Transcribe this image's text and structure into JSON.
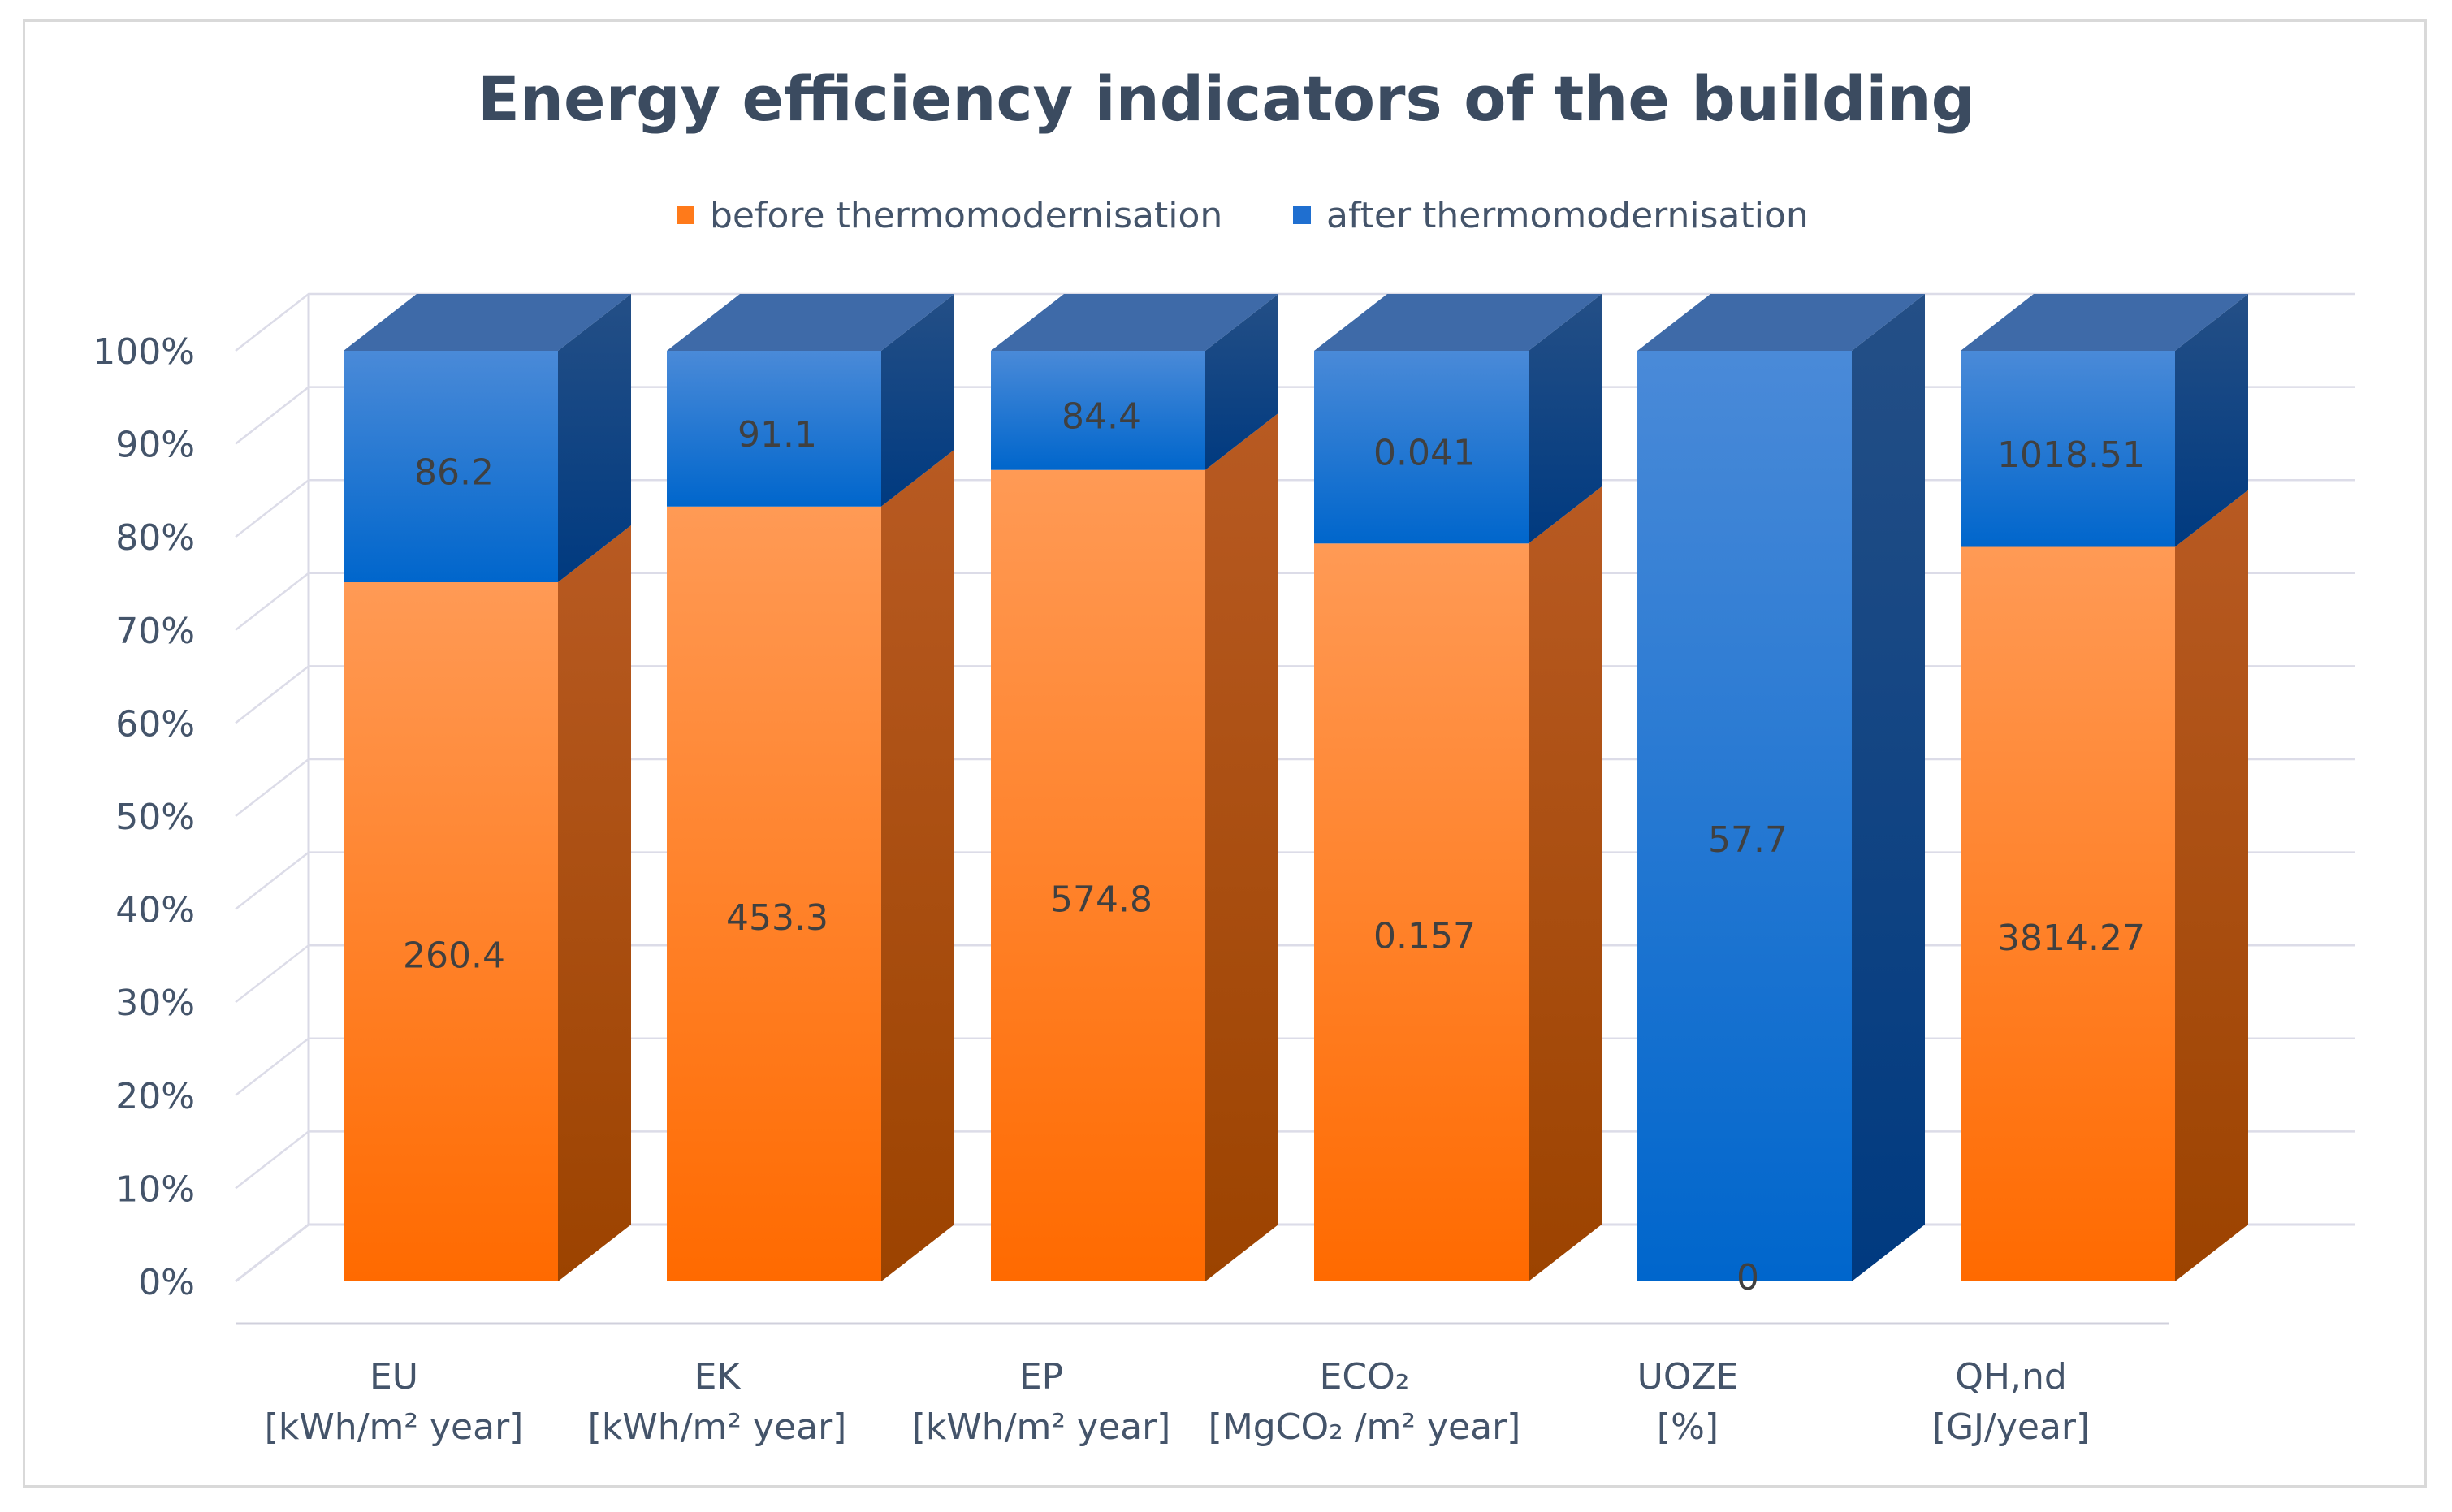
{
  "chart_data": {
    "type": "bar",
    "stacked": "percent",
    "style": "3d-column",
    "title": "Energy efficiency indicators of the building",
    "legend_position": "top",
    "ylim": [
      0,
      100
    ],
    "yticks": [
      "0%",
      "10%",
      "20%",
      "30%",
      "40%",
      "50%",
      "60%",
      "70%",
      "80%",
      "90%",
      "100%"
    ],
    "categories": [
      {
        "line1": "EU",
        "line2": "[kWh/m² year]"
      },
      {
        "line1": "EK",
        "line2": "[kWh/m² year]"
      },
      {
        "line1": "EP",
        "line2": "[kWh/m² year]"
      },
      {
        "line1": "ECO₂",
        "line2": "[MgCO₂ /m² year]"
      },
      {
        "line1": "UOZE",
        "line2": "[%]"
      },
      {
        "line1": "QH,nd",
        "line2": "[GJ/year]"
      }
    ],
    "series": [
      {
        "name": "before thermomodernisation",
        "color": "#ff7a1a",
        "values": [
          260.4,
          453.3,
          574.8,
          0.157,
          0,
          3814.27
        ],
        "labels": [
          "260.4",
          "453.3",
          "574.8",
          "0.157",
          "0",
          "3814.27"
        ]
      },
      {
        "name": "after thermomodernisation",
        "color": "#1f6fd0",
        "values": [
          86.2,
          91.1,
          84.4,
          0.041,
          57.7,
          1018.51
        ],
        "labels": [
          "86.2",
          "91.1",
          "84.4",
          "0.041",
          "57.7",
          "1018.51"
        ]
      }
    ]
  }
}
